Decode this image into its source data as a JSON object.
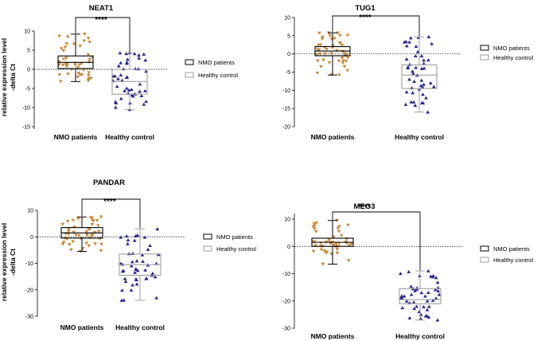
{
  "colors": {
    "nmo_box": "#000000",
    "healthy_box": "#9e9e9e",
    "nmo_marker": "#c7893a",
    "healthy_marker": "#27278f"
  },
  "chart_data": [
    {
      "type": "box",
      "title": "NEAT1",
      "ylabel": "relative expression level",
      "ylabel2": "-delta Ct",
      "ylim": [
        -15,
        10
      ],
      "yticks": [
        10,
        5,
        0,
        -5,
        -10,
        -15
      ],
      "categories": [
        "NMO patients",
        "Healthy control"
      ],
      "legend": [
        "NMO patients",
        "Healthy control"
      ],
      "significance": "****",
      "series": [
        {
          "name": "NMO patients",
          "min": -3.2,
          "q1": 0.2,
          "median": 1.8,
          "q3": 3.5,
          "max": 9.2
        },
        {
          "name": "Healthy control",
          "min": -10.5,
          "q1": -6.5,
          "median": -3.2,
          "q3": 0,
          "max": 4.3
        }
      ]
    },
    {
      "type": "box",
      "title": "TUG1",
      "ylabel": "",
      "ylabel2": "",
      "ylim": [
        -20,
        10
      ],
      "yticks": [
        10,
        5,
        0,
        -5,
        -10,
        -15,
        -20
      ],
      "categories": [
        "NMO patients",
        "Healthy control"
      ],
      "legend": [
        "NMO patients",
        "Healthy control"
      ],
      "significance": "****",
      "series": [
        {
          "name": "NMO patients",
          "min": -5.8,
          "q1": -0.5,
          "median": 0.8,
          "q3": 2.0,
          "max": 5.8
        },
        {
          "name": "Healthy control",
          "min": -16,
          "q1": -9.5,
          "median": -5.8,
          "q3": -3,
          "max": 4.7
        }
      ]
    },
    {
      "type": "box",
      "title": "PANDAR",
      "ylabel": "relative expression level",
      "ylabel2": "-delta Ct",
      "ylim": [
        -30,
        10
      ],
      "yticks": [
        10,
        0,
        -10,
        -20,
        -30
      ],
      "categories": [
        "NMO patients",
        "Healthy control"
      ],
      "legend": [
        "NMO patients",
        "Healthy control"
      ],
      "significance": "****",
      "series": [
        {
          "name": "NMO patients",
          "min": -5.5,
          "q1": -0.5,
          "median": 1.5,
          "q3": 3.5,
          "max": 7.5
        },
        {
          "name": "Healthy control",
          "min": -24,
          "q1": -14.5,
          "median": -10.5,
          "q3": -6.5,
          "max": 3.0
        }
      ]
    },
    {
      "type": "box",
      "title": "MEG3",
      "ylabel": "",
      "ylabel2": "",
      "ylim": [
        -30,
        10
      ],
      "yticks": [
        10,
        0,
        -10,
        -20,
        -30
      ],
      "categories": [
        "NMO patients",
        "Healthy control"
      ],
      "legend": [
        "NMO patients",
        "Healthy control"
      ],
      "significance": "****",
      "series": [
        {
          "name": "NMO patients",
          "min": -6.5,
          "q1": 0,
          "median": 1.5,
          "q3": 3,
          "max": 9.5
        },
        {
          "name": "Healthy control",
          "min": -27,
          "q1": -21,
          "median": -19.5,
          "q3": -15.5,
          "max": -9
        }
      ]
    }
  ]
}
